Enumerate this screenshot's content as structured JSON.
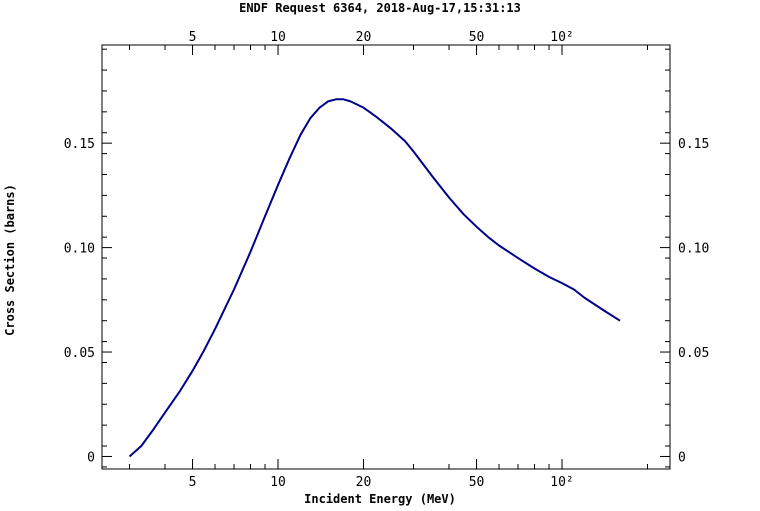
{
  "header": {
    "title": "ENDF Request 6364, 2018-Aug-17,15:31:13"
  },
  "chart_data": {
    "type": "line",
    "title": "ENDF Request 6364, 2018-Aug-17,15:31:13",
    "xlabel": "Incident Energy (MeV)",
    "ylabel": "Cross Section (barns)",
    "xscale": "log",
    "xlim": [
      2.4,
      240
    ],
    "ylim": [
      -0.006,
      0.197
    ],
    "grid": false,
    "x_ticks": [
      {
        "value": 5,
        "label": "5"
      },
      {
        "value": 10,
        "label": "10"
      },
      {
        "value": 20,
        "label": "20"
      },
      {
        "value": 50,
        "label": "50"
      },
      {
        "value": 100,
        "label": "10²"
      }
    ],
    "y_ticks": [
      {
        "value": 0,
        "label": "0"
      },
      {
        "value": 0.05,
        "label": "0.05"
      },
      {
        "value": 0.1,
        "label": "0.10"
      },
      {
        "value": 0.15,
        "label": "0.15"
      }
    ],
    "color": "#00008b",
    "series": [
      {
        "x": [
          3.0,
          3.3,
          3.6,
          4.0,
          4.5,
          5.0,
          5.5,
          6.0,
          7.0,
          8.0,
          9.0,
          10.0,
          11.0,
          12.0,
          13.0,
          14.0,
          15.0,
          16.0,
          17.0,
          18.0,
          20.0,
          22.0,
          25.0,
          28.0,
          30.0,
          35.0,
          40.0,
          45.0,
          50.0,
          55.0,
          60.0,
          70.0,
          80.0,
          90.0,
          100.0,
          110.0,
          120.0,
          140.0,
          160.0
        ],
        "y": [
          0.0,
          0.005,
          0.012,
          0.021,
          0.031,
          0.041,
          0.051,
          0.061,
          0.08,
          0.098,
          0.115,
          0.13,
          0.143,
          0.154,
          0.162,
          0.167,
          0.17,
          0.171,
          0.171,
          0.17,
          0.167,
          0.163,
          0.157,
          0.151,
          0.146,
          0.134,
          0.124,
          0.116,
          0.11,
          0.105,
          0.101,
          0.095,
          0.09,
          0.086,
          0.083,
          0.08,
          0.076,
          0.07,
          0.065
        ]
      }
    ]
  }
}
